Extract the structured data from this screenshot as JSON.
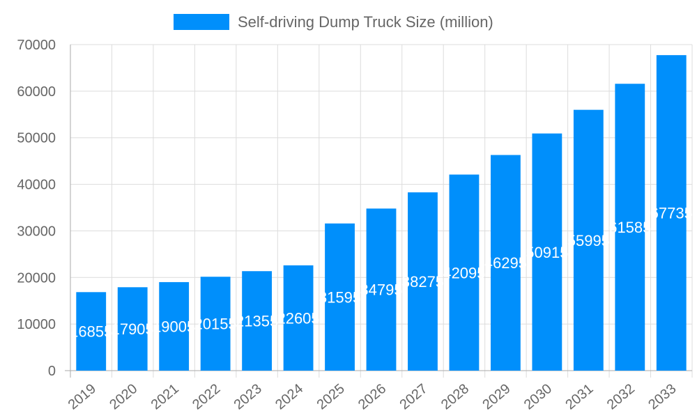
{
  "chart_data": {
    "type": "bar",
    "title": "",
    "xlabel": "",
    "ylabel": "",
    "ylim": [
      0,
      70000
    ],
    "yticks": [
      0,
      10000,
      20000,
      30000,
      40000,
      50000,
      60000,
      70000
    ],
    "grid": true,
    "legend_position": "top",
    "categories": [
      "2019",
      "2020",
      "2021",
      "2022",
      "2023",
      "2024",
      "2025",
      "2026",
      "2027",
      "2028",
      "2029",
      "2030",
      "2031",
      "2032",
      "2033"
    ],
    "series": [
      {
        "name": "Self-driving Dump Truck Size (million)",
        "color": "#008ffb",
        "values": [
          16855,
          17905,
          19005,
          20155,
          21355,
          22605,
          31595,
          34795,
          38275,
          42095,
          46295,
          50915,
          55995,
          61585,
          67735
        ]
      }
    ]
  }
}
